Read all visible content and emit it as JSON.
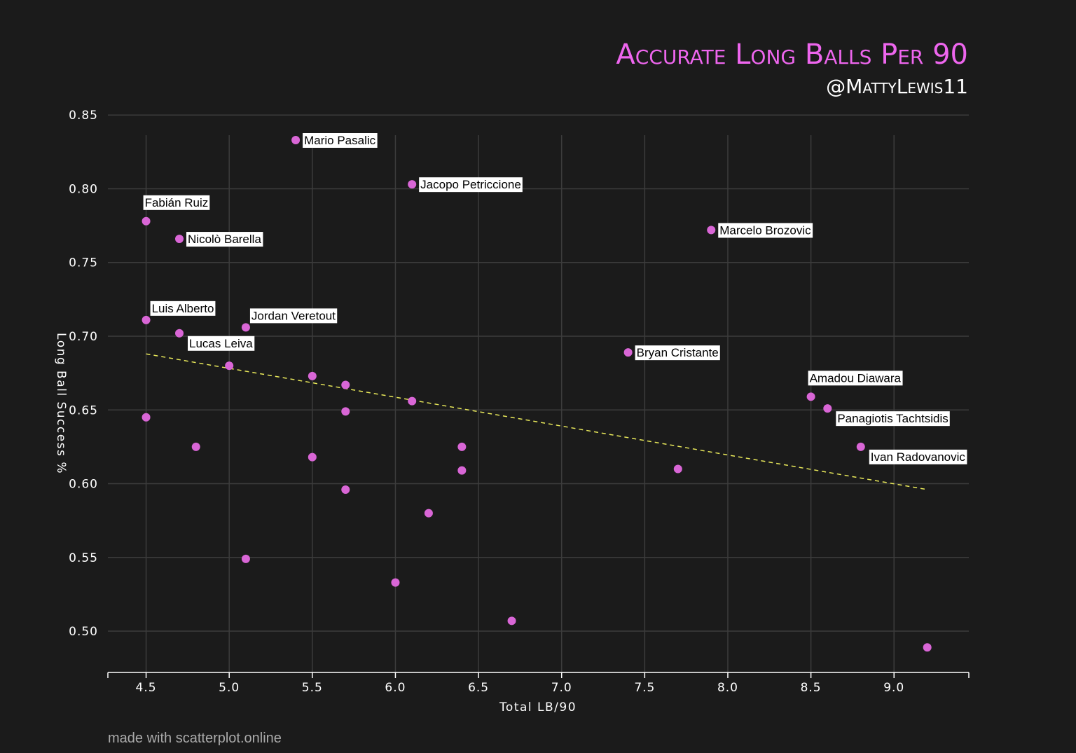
{
  "title": "Accurate Long Balls Per 90",
  "subtitle": "@MattyLewis11",
  "footer": "made with scatterplot.online",
  "colors": {
    "background": "#1b1b1b",
    "point": "#d966d6",
    "trend": "#e8e85a",
    "grid": "#3c3c3c",
    "title": "#ee66ee"
  },
  "chart_data": {
    "type": "scatter",
    "xlabel": "Total LB/90",
    "ylabel": "Long Ball Success %",
    "xlim": [
      4.27,
      9.45
    ],
    "ylim": [
      0.472,
      0.852
    ],
    "xticks": [
      "4.5",
      "5.0",
      "5.5",
      "6.0",
      "6.5",
      "7.0",
      "7.5",
      "8.0",
      "8.5",
      "9.0"
    ],
    "yticks": [
      "0.50",
      "0.55",
      "0.60",
      "0.65",
      "0.70",
      "0.75",
      "0.80",
      "0.85"
    ],
    "grid": true,
    "trendline": {
      "x": [
        4.5,
        9.2
      ],
      "y": [
        0.688,
        0.596
      ]
    },
    "points": [
      {
        "x": 5.4,
        "y": 0.833,
        "label": "Mario Pasalic"
      },
      {
        "x": 6.1,
        "y": 0.803,
        "label": "Jacopo Petriccione"
      },
      {
        "x": 4.5,
        "y": 0.778,
        "label": "Fabián Ruiz"
      },
      {
        "x": 4.7,
        "y": 0.766,
        "label": "Nicolò Barella"
      },
      {
        "x": 7.9,
        "y": 0.772,
        "label": "Marcelo Brozovic"
      },
      {
        "x": 4.5,
        "y": 0.711,
        "label": "Luis Alberto"
      },
      {
        "x": 5.1,
        "y": 0.706,
        "label": "Jordan Veretout"
      },
      {
        "x": 4.7,
        "y": 0.702,
        "label": "Lucas Leiva"
      },
      {
        "x": 7.4,
        "y": 0.689,
        "label": "Bryan Cristante"
      },
      {
        "x": 8.5,
        "y": 0.659,
        "label": "Amadou Diawara"
      },
      {
        "x": 8.6,
        "y": 0.651,
        "label": "Panagiotis Tachtsidis"
      },
      {
        "x": 8.8,
        "y": 0.625,
        "label": "Ivan Radovanovic"
      },
      {
        "x": 5.0,
        "y": 0.68
      },
      {
        "x": 5.5,
        "y": 0.673
      },
      {
        "x": 5.7,
        "y": 0.667
      },
      {
        "x": 6.1,
        "y": 0.656
      },
      {
        "x": 5.7,
        "y": 0.649
      },
      {
        "x": 4.5,
        "y": 0.645
      },
      {
        "x": 4.8,
        "y": 0.625
      },
      {
        "x": 6.4,
        "y": 0.625
      },
      {
        "x": 5.5,
        "y": 0.618
      },
      {
        "x": 6.4,
        "y": 0.609
      },
      {
        "x": 7.7,
        "y": 0.61
      },
      {
        "x": 5.7,
        "y": 0.596
      },
      {
        "x": 6.2,
        "y": 0.58
      },
      {
        "x": 5.1,
        "y": 0.549
      },
      {
        "x": 6.0,
        "y": 0.533
      },
      {
        "x": 6.7,
        "y": 0.507
      },
      {
        "x": 9.2,
        "y": 0.489
      }
    ]
  }
}
